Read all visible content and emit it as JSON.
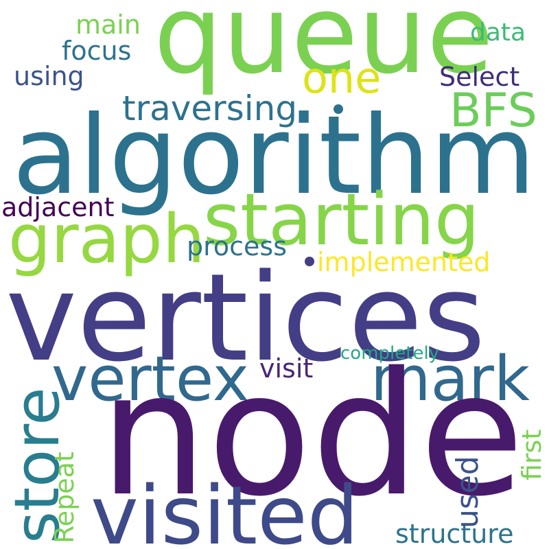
{
  "words": {
    "node": {
      "text": "node",
      "color": "#481A6C"
    },
    "vertices": {
      "text": "vertices",
      "color": "#433E85"
    },
    "algorithm": {
      "text": "algorithm",
      "color": "#2C728E"
    },
    "queue": {
      "text": "queue",
      "color": "#7AD151"
    },
    "starting": {
      "text": "starting",
      "color": "#86D549"
    },
    "graph": {
      "text": "graph",
      "color": "#95D840"
    },
    "visited": {
      "text": "visited",
      "color": "#3E4A89"
    },
    "vertex": {
      "text": "vertex",
      "color": "#31688E"
    },
    "mark": {
      "text": "mark",
      "color": "#31688E"
    },
    "store": {
      "text": "store",
      "color": "#287D8E"
    },
    "traversing": {
      "text": "traversing",
      "color": "#2C728E"
    },
    "bfs": {
      "text": "BFS",
      "color": "#6CCD5A"
    },
    "one": {
      "text": "one",
      "color": "#DDE318"
    },
    "focus": {
      "text": "focus",
      "color": "#2C728E"
    },
    "main": {
      "text": "main",
      "color": "#7AD151"
    },
    "data": {
      "text": "data",
      "color": "#3BBB75"
    },
    "using": {
      "text": "using",
      "color": "#3B528B"
    },
    "select": {
      "text": "Select",
      "color": "#3F2D7A"
    },
    "adjacent": {
      "text": "adjacent",
      "color": "#440154"
    },
    "process": {
      "text": "process",
      "color": "#2C728E"
    },
    "implemented": {
      "text": "implemented",
      "color": "#FDE725"
    },
    "completely": {
      "text": "completely",
      "color": "#22A884"
    },
    "visit": {
      "text": "visit",
      "color": "#482576"
    },
    "used": {
      "text": "used",
      "color": "#3B528B"
    },
    "first": {
      "text": "first",
      "color": "#7AD151"
    },
    "repeat": {
      "text": "Repeat",
      "color": "#7AD151"
    },
    "structure": {
      "text": "structure",
      "color": "#2C728E"
    }
  }
}
